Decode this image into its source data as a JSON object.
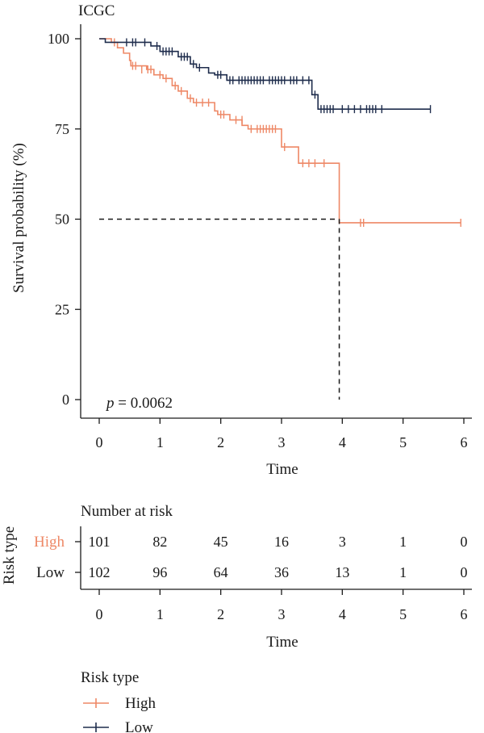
{
  "chart_data": [
    {
      "type": "line",
      "subtype": "kaplan-meier",
      "title": "ICGC",
      "xlabel": "Time",
      "ylabel": "Survival probability (%)",
      "xlim": [
        0,
        6
      ],
      "ylim": [
        0,
        100
      ],
      "xticks": [
        "0",
        "1",
        "2",
        "3",
        "4",
        "5",
        "6"
      ],
      "yticks": [
        "0",
        "25",
        "50",
        "75",
        "100"
      ],
      "annotation": {
        "p_label": "p",
        "p_text": " = 0.0062"
      },
      "median_line": {
        "y": 50,
        "x": 3.95
      },
      "series": [
        {
          "name": "High",
          "color": "#EE8866",
          "steps": [
            [
              0,
              100
            ],
            [
              0.2,
              99
            ],
            [
              0.3,
              97.5
            ],
            [
              0.4,
              96
            ],
            [
              0.5,
              94
            ],
            [
              0.52,
              92.5
            ],
            [
              0.78,
              91.5
            ],
            [
              0.9,
              90
            ],
            [
              1.05,
              89
            ],
            [
              1.2,
              87
            ],
            [
              1.3,
              85.5
            ],
            [
              1.45,
              83.5
            ],
            [
              1.55,
              82.3
            ],
            [
              1.9,
              80
            ],
            [
              1.95,
              79
            ],
            [
              2.15,
              77.5
            ],
            [
              2.35,
              76
            ],
            [
              2.45,
              75
            ],
            [
              3.0,
              70
            ],
            [
              3.28,
              65.5
            ],
            [
              3.95,
              49
            ]
          ],
          "censored": [
            [
              0.25,
              99
            ],
            [
              0.55,
              92.5
            ],
            [
              0.6,
              92.5
            ],
            [
              0.7,
              91.5
            ],
            [
              0.8,
              91.5
            ],
            [
              0.85,
              91.5
            ],
            [
              1.0,
              90
            ],
            [
              1.1,
              89
            ],
            [
              1.25,
              87
            ],
            [
              1.35,
              85.5
            ],
            [
              1.5,
              83.5
            ],
            [
              1.6,
              82.3
            ],
            [
              1.7,
              82.3
            ],
            [
              1.8,
              82.3
            ],
            [
              2.0,
              79
            ],
            [
              2.05,
              79
            ],
            [
              2.25,
              77.5
            ],
            [
              2.35,
              77.5
            ],
            [
              2.5,
              75
            ],
            [
              2.6,
              75
            ],
            [
              2.65,
              75
            ],
            [
              2.7,
              75
            ],
            [
              2.75,
              75
            ],
            [
              2.8,
              75
            ],
            [
              2.85,
              75
            ],
            [
              2.9,
              75
            ],
            [
              3.05,
              70
            ],
            [
              3.35,
              65.5
            ],
            [
              3.45,
              65.5
            ],
            [
              3.55,
              65.5
            ],
            [
              3.7,
              65.5
            ],
            [
              4.3,
              49
            ],
            [
              4.35,
              49
            ],
            [
              5.95,
              49
            ]
          ]
        },
        {
          "name": "Low",
          "color": "#1F2D4D",
          "steps": [
            [
              0,
              100
            ],
            [
              0.1,
              99
            ],
            [
              0.85,
              98
            ],
            [
              1.0,
              96.5
            ],
            [
              1.3,
              95
            ],
            [
              1.5,
              93
            ],
            [
              1.6,
              92
            ],
            [
              1.8,
              90.5
            ],
            [
              1.9,
              90
            ],
            [
              2.1,
              88.5
            ],
            [
              3.5,
              84.5
            ],
            [
              3.6,
              80.5
            ]
          ],
          "censored": [
            [
              0.45,
              99
            ],
            [
              0.55,
              99
            ],
            [
              0.6,
              99
            ],
            [
              0.75,
              99
            ],
            [
              0.95,
              98
            ],
            [
              1.05,
              96.5
            ],
            [
              1.1,
              96.5
            ],
            [
              1.15,
              96.5
            ],
            [
              1.2,
              96.5
            ],
            [
              1.35,
              95
            ],
            [
              1.4,
              95
            ],
            [
              1.45,
              95
            ],
            [
              1.55,
              93
            ],
            [
              1.65,
              92
            ],
            [
              1.95,
              90
            ],
            [
              2.0,
              90
            ],
            [
              2.15,
              88.5
            ],
            [
              2.2,
              88.5
            ],
            [
              2.3,
              88.5
            ],
            [
              2.35,
              88.5
            ],
            [
              2.4,
              88.5
            ],
            [
              2.45,
              88.5
            ],
            [
              2.5,
              88.5
            ],
            [
              2.55,
              88.5
            ],
            [
              2.6,
              88.5
            ],
            [
              2.65,
              88.5
            ],
            [
              2.7,
              88.5
            ],
            [
              2.8,
              88.5
            ],
            [
              2.85,
              88.5
            ],
            [
              2.9,
              88.5
            ],
            [
              2.95,
              88.5
            ],
            [
              3.0,
              88.5
            ],
            [
              3.05,
              88.5
            ],
            [
              3.15,
              88.5
            ],
            [
              3.2,
              88.5
            ],
            [
              3.25,
              88.5
            ],
            [
              3.35,
              88.5
            ],
            [
              3.45,
              88.5
            ],
            [
              3.55,
              84.5
            ],
            [
              3.65,
              80.5
            ],
            [
              3.7,
              80.5
            ],
            [
              3.75,
              80.5
            ],
            [
              3.8,
              80.5
            ],
            [
              3.85,
              80.5
            ],
            [
              4.0,
              80.5
            ],
            [
              4.1,
              80.5
            ],
            [
              4.2,
              80.5
            ],
            [
              4.3,
              80.5
            ],
            [
              4.4,
              80.5
            ],
            [
              4.45,
              80.5
            ],
            [
              4.5,
              80.5
            ],
            [
              4.55,
              80.5
            ],
            [
              4.65,
              80.5
            ],
            [
              5.45,
              80.5
            ]
          ]
        }
      ]
    },
    {
      "type": "table",
      "title": "Number at risk",
      "ylabel": "Risk type",
      "xlabel": "Time",
      "xticks": [
        "0",
        "1",
        "2",
        "3",
        "4",
        "5",
        "6"
      ],
      "rows": [
        {
          "name": "High",
          "color": "#EE8866",
          "values": [
            "101",
            "82",
            "45",
            "16",
            "3",
            "1",
            "0"
          ]
        },
        {
          "name": "Low",
          "color": "#1a1a1a",
          "values": [
            "102",
            "96",
            "64",
            "36",
            "13",
            "1",
            "0"
          ]
        }
      ]
    }
  ],
  "legend": {
    "title": "Risk type",
    "items": [
      {
        "label": "High",
        "color": "#EE8866"
      },
      {
        "label": "Low",
        "color": "#1F2D4D"
      }
    ]
  }
}
